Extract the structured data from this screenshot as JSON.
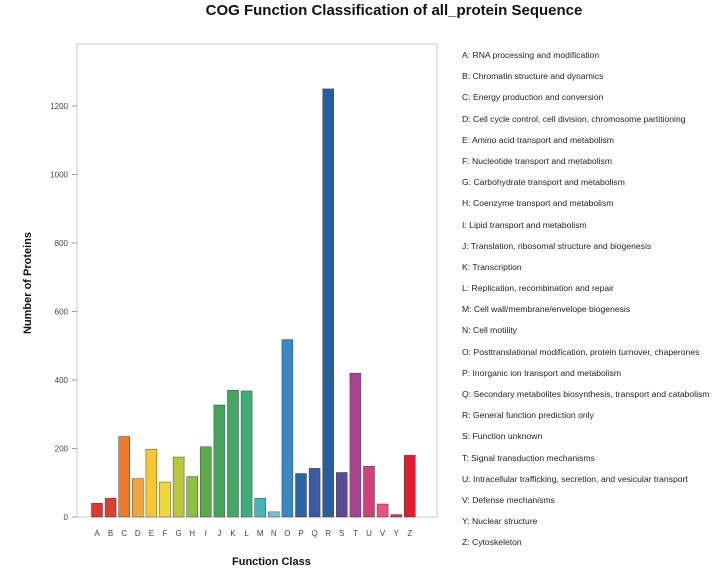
{
  "chart_data": {
    "type": "bar",
    "title": "COG Function Classification of all_protein Sequence",
    "xlabel": "Function Class",
    "ylabel": "Number of Proteins",
    "ylim": [
      0,
      1300
    ],
    "yticks": [
      0,
      200,
      400,
      600,
      800,
      1000,
      1200
    ],
    "grid": false,
    "legend_position": "right",
    "categories": [
      "A",
      "B",
      "C",
      "D",
      "E",
      "F",
      "G",
      "H",
      "I",
      "J",
      "K",
      "L",
      "M",
      "N",
      "O",
      "P",
      "Q",
      "R",
      "S",
      "T",
      "U",
      "V",
      "Y",
      "Z"
    ],
    "values": [
      40,
      55,
      235,
      112,
      198,
      102,
      175,
      118,
      205,
      327,
      370,
      368,
      55,
      15,
      518,
      127,
      142,
      1250,
      130,
      420,
      148,
      38,
      7,
      180
    ],
    "colors": [
      "#e8342a",
      "#d9402e",
      "#f0792a",
      "#f2a540",
      "#f5c832",
      "#f0d838",
      "#b8c838",
      "#8cc040",
      "#5aaa4c",
      "#47a35c",
      "#44a665",
      "#3caf7a",
      "#45b4bc",
      "#6fc4d8",
      "#3a88c2",
      "#2e63a4",
      "#3a5aa6",
      "#2a5ca0",
      "#5b4a96",
      "#a8448e",
      "#d2407a",
      "#e8547c",
      "#e03040",
      "#e41c30"
    ]
  },
  "legend": [
    "A: RNA processing and modification",
    "B: Chromatin structure and dynamics",
    "C: Energy production and conversion",
    "D: Cell cycle control, cell division, chromosome partitioning",
    "E: Amino acid transport and metabolism",
    "F: Nucleotide transport and metabolism",
    "G: Carbohydrate transport and metabolism",
    "H: Coenzyme transport and metabolism",
    "I: Lipid transport and metabolism",
    "J: Translation, ribosomal structure and biogenesis",
    "K: Transcription",
    "L: Replication, recombination and repair",
    "M: Cell wall/membrane/envelope biogenesis",
    "N: Cell motility",
    "O: Posttranslational modification, protein turnover, chaperones",
    "P: Inorganic ion transport and metabolism",
    "Q: Secondary metabolites biosynthesis, transport and catabolism",
    "R: General function prediction only",
    "S: Function unknown",
    "T: Signal transduction mechanisms",
    "U: Intracellular trafficking, secretion, and vesicular transport",
    "V: Defense mechanisms",
    "Y: Nuclear structure",
    "Z: Cytoskeleton"
  ]
}
